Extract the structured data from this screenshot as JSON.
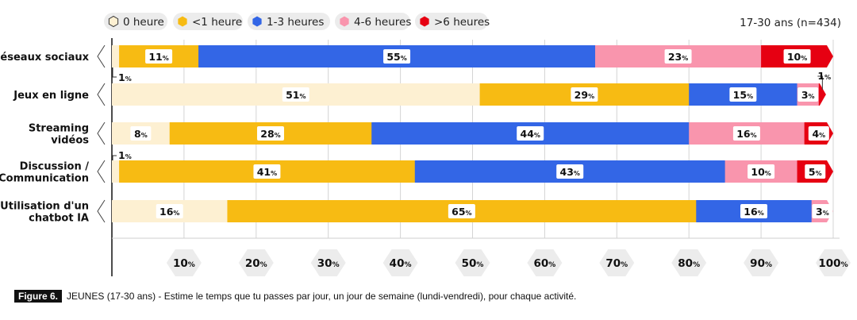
{
  "chart_data": {
    "type": "bar",
    "orientation": "horizontal",
    "stacked": true,
    "sample_label": "17-30 ans (n=434)",
    "categories": [
      [
        "Réseaux sociaux"
      ],
      [
        "Jeux en ligne"
      ],
      [
        "Streaming",
        "vidéos"
      ],
      [
        "Discussion /",
        "Communication"
      ],
      [
        "Utilisation d'un",
        "chatbot IA"
      ]
    ],
    "series": [
      {
        "name": "0 heure",
        "color": "#fdf0d2",
        "values": [
          1,
          51,
          8,
          1,
          16
        ]
      },
      {
        "name": "<1 heure",
        "color": "#f7bb13",
        "values": [
          11,
          29,
          28,
          41,
          65
        ]
      },
      {
        "name": "1-3 heures",
        "color": "#3366e6",
        "values": [
          55,
          15,
          44,
          43,
          16
        ]
      },
      {
        "name": "4-6 heures",
        "color": "#f995ad",
        "values": [
          23,
          3,
          16,
          10,
          3
        ]
      },
      {
        "name": ">6 heures",
        "color": "#e60012",
        "values": [
          10,
          1,
          4,
          5,
          0
        ]
      }
    ],
    "xaxis": {
      "ticks": [
        10,
        20,
        30,
        40,
        50,
        60,
        70,
        80,
        90,
        100
      ],
      "tick_suffix": "%",
      "range": [
        0,
        100
      ]
    },
    "grid": true,
    "legend_position": "top"
  },
  "caption": {
    "badge": "Figure 6.",
    "text": "JEUNES (17-30 ans)  -  Estime le temps que tu passes par jour, un jour de semaine (lundi-vendredi), pour chaque activité."
  }
}
